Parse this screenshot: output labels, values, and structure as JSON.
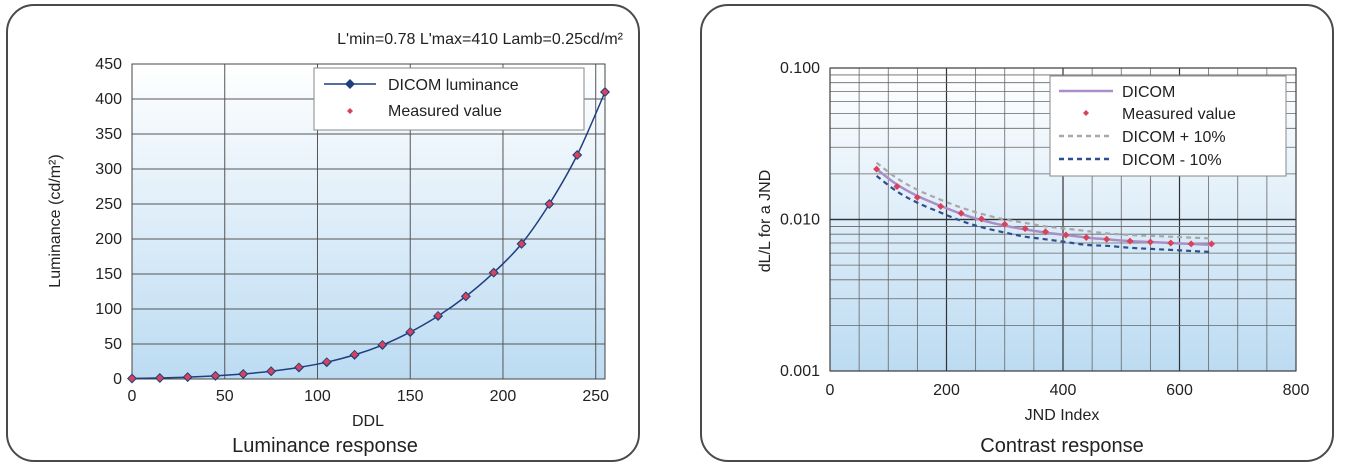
{
  "chart_data": [
    {
      "type": "line",
      "title": "Luminance response",
      "annotation": "L'min=0.78 L'max=410 Lamb=0.25cd/m²",
      "xlabel": "DDL",
      "ylabel": "Luminance (cd/m²)",
      "xlim": [
        0,
        255
      ],
      "ylim": [
        0,
        450
      ],
      "xticks": [
        0,
        50,
        100,
        150,
        200,
        250
      ],
      "yticks": [
        0,
        50,
        100,
        150,
        200,
        250,
        300,
        350,
        400,
        450
      ],
      "grid": true,
      "legend_position": "top-right",
      "series": [
        {
          "name": "DICOM luminance",
          "style": "line",
          "color": "#1f3f7f",
          "x": [
            0,
            15,
            30,
            45,
            60,
            75,
            90,
            105,
            120,
            135,
            150,
            165,
            180,
            195,
            210,
            225,
            240,
            255
          ],
          "y": [
            0.78,
            1.5,
            2.7,
            4.5,
            7.2,
            11.0,
            16.5,
            24.0,
            34.5,
            48.5,
            67.0,
            90.0,
            118.0,
            152.0,
            193.0,
            250.0,
            320.0,
            410.0
          ]
        },
        {
          "name": "Measured value",
          "style": "marker",
          "color": "#d9425a",
          "x": [
            0,
            15,
            30,
            45,
            60,
            75,
            90,
            105,
            120,
            135,
            150,
            165,
            180,
            195,
            210,
            225,
            240,
            255
          ],
          "y": [
            0.8,
            1.5,
            2.8,
            4.6,
            7.3,
            11.2,
            16.8,
            24.5,
            35.0,
            49.0,
            67.5,
            90.5,
            118.0,
            152.0,
            193.0,
            250.0,
            320.0,
            410.0
          ]
        }
      ]
    },
    {
      "type": "line",
      "title": "Contrast response",
      "xlabel": "JND Index",
      "ylabel": "dL/L for a JND",
      "xlim": [
        0,
        800
      ],
      "ylim": [
        0.001,
        0.1
      ],
      "yscale": "log",
      "xticks": [
        0,
        200,
        400,
        600,
        800
      ],
      "yticks": [
        0.001,
        0.01,
        0.1
      ],
      "ytick_labels": [
        "0.001",
        "0.010",
        "0.100"
      ],
      "grid": true,
      "legend_position": "top-right",
      "series": [
        {
          "name": "DICOM",
          "style": "line",
          "color": "#a98fc8",
          "x": [
            80,
            115,
            150,
            190,
            225,
            260,
            300,
            335,
            370,
            405,
            440,
            475,
            515,
            550,
            585,
            620,
            655
          ],
          "y": [
            0.0215,
            0.017,
            0.0143,
            0.0123,
            0.0109,
            0.0099,
            0.0091,
            0.0086,
            0.0082,
            0.0079,
            0.0076,
            0.0074,
            0.0072,
            0.0071,
            0.007,
            0.0069,
            0.0068
          ]
        },
        {
          "name": "Measured value",
          "style": "marker",
          "color": "#d9425a",
          "x": [
            80,
            115,
            150,
            190,
            225,
            260,
            300,
            335,
            370,
            405,
            440,
            475,
            515,
            550,
            585,
            620,
            655
          ],
          "y": [
            0.0215,
            0.0165,
            0.014,
            0.0122,
            0.011,
            0.0101,
            0.0093,
            0.0087,
            0.0083,
            0.0079,
            0.0076,
            0.0074,
            0.0072,
            0.0071,
            0.007,
            0.0069,
            0.0069
          ]
        },
        {
          "name": "DICOM + 10%",
          "style": "dashed",
          "color": "#a8a8a8",
          "x": [
            80,
            115,
            150,
            190,
            225,
            260,
            300,
            335,
            370,
            405,
            440,
            475,
            515,
            550,
            585,
            620,
            655
          ],
          "y": [
            0.0237,
            0.0187,
            0.0157,
            0.0135,
            0.012,
            0.0109,
            0.01,
            0.0095,
            0.009,
            0.0087,
            0.0084,
            0.0081,
            0.0079,
            0.0078,
            0.0077,
            0.0076,
            0.0075
          ]
        },
        {
          "name": "DICOM - 10%",
          "style": "dashed",
          "color": "#2e4f8f",
          "x": [
            80,
            115,
            150,
            190,
            225,
            260,
            300,
            335,
            370,
            405,
            440,
            475,
            515,
            550,
            585,
            620,
            655
          ],
          "y": [
            0.0194,
            0.0153,
            0.0129,
            0.0111,
            0.0098,
            0.0089,
            0.0082,
            0.0077,
            0.0074,
            0.0071,
            0.0068,
            0.0067,
            0.0065,
            0.0064,
            0.0063,
            0.0062,
            0.0061
          ]
        }
      ]
    }
  ]
}
